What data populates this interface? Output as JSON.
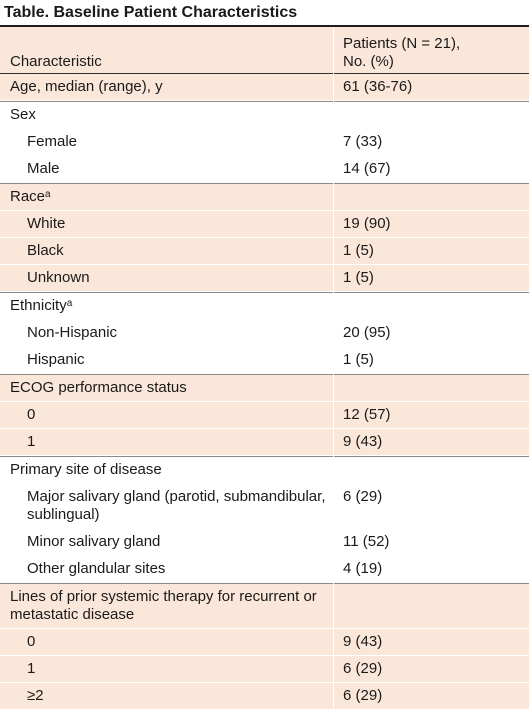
{
  "title": "Table. Baseline Patient Characteristics",
  "header": {
    "col1": "Characteristic",
    "col2_line1": "Patients (N = 21),",
    "col2_line2": "No. (%)"
  },
  "rows": [
    {
      "label": "Age, median (range), y",
      "value": "61 (36-76)",
      "indent": false,
      "group_start": true
    },
    {
      "label": "Sex",
      "value": "",
      "indent": false,
      "group_start": true
    },
    {
      "label": "Female",
      "value": "7 (33)",
      "indent": true
    },
    {
      "label": "Male",
      "value": "14 (67)",
      "indent": true
    },
    {
      "label": "Race",
      "sup": "a",
      "value": "",
      "indent": false,
      "group_start": true
    },
    {
      "label": "White",
      "value": "19 (90)",
      "indent": true
    },
    {
      "label": "Black",
      "value": "1 (5)",
      "indent": true
    },
    {
      "label": "Unknown",
      "value": "1 (5)",
      "indent": true
    },
    {
      "label": "Ethnicity",
      "sup": "a",
      "value": "",
      "indent": false,
      "group_start": true
    },
    {
      "label": "Non-Hispanic",
      "value": "20 (95)",
      "indent": true
    },
    {
      "label": "Hispanic",
      "value": "1 (5)",
      "indent": true
    },
    {
      "label": "ECOG performance status",
      "value": "",
      "indent": false,
      "group_start": true
    },
    {
      "label": "0",
      "value": "12 (57)",
      "indent": true
    },
    {
      "label": "1",
      "value": "9 (43)",
      "indent": true
    },
    {
      "label": "Primary site of disease",
      "value": "",
      "indent": false,
      "group_start": true
    },
    {
      "label": "Major salivary gland (parotid, submandibular, sublingual)",
      "value": "6 (29)",
      "indent": true
    },
    {
      "label": "Minor salivary gland",
      "value": "11 (52)",
      "indent": true
    },
    {
      "label": "Other glandular sites",
      "value": "4 (19)",
      "indent": true
    },
    {
      "label": "Lines of prior systemic therapy for recurrent or metastatic disease",
      "value": "",
      "indent": false,
      "group_start": true
    },
    {
      "label": "0",
      "value": "9 (43)",
      "indent": true
    },
    {
      "label": "1",
      "value": "6 (29)",
      "indent": true
    },
    {
      "label": "≥2",
      "value": "6 (29)",
      "indent": true
    }
  ],
  "colors": {
    "peach": "#fbe7d9",
    "white": "#ffffff",
    "rule": "#1c1c1c"
  }
}
